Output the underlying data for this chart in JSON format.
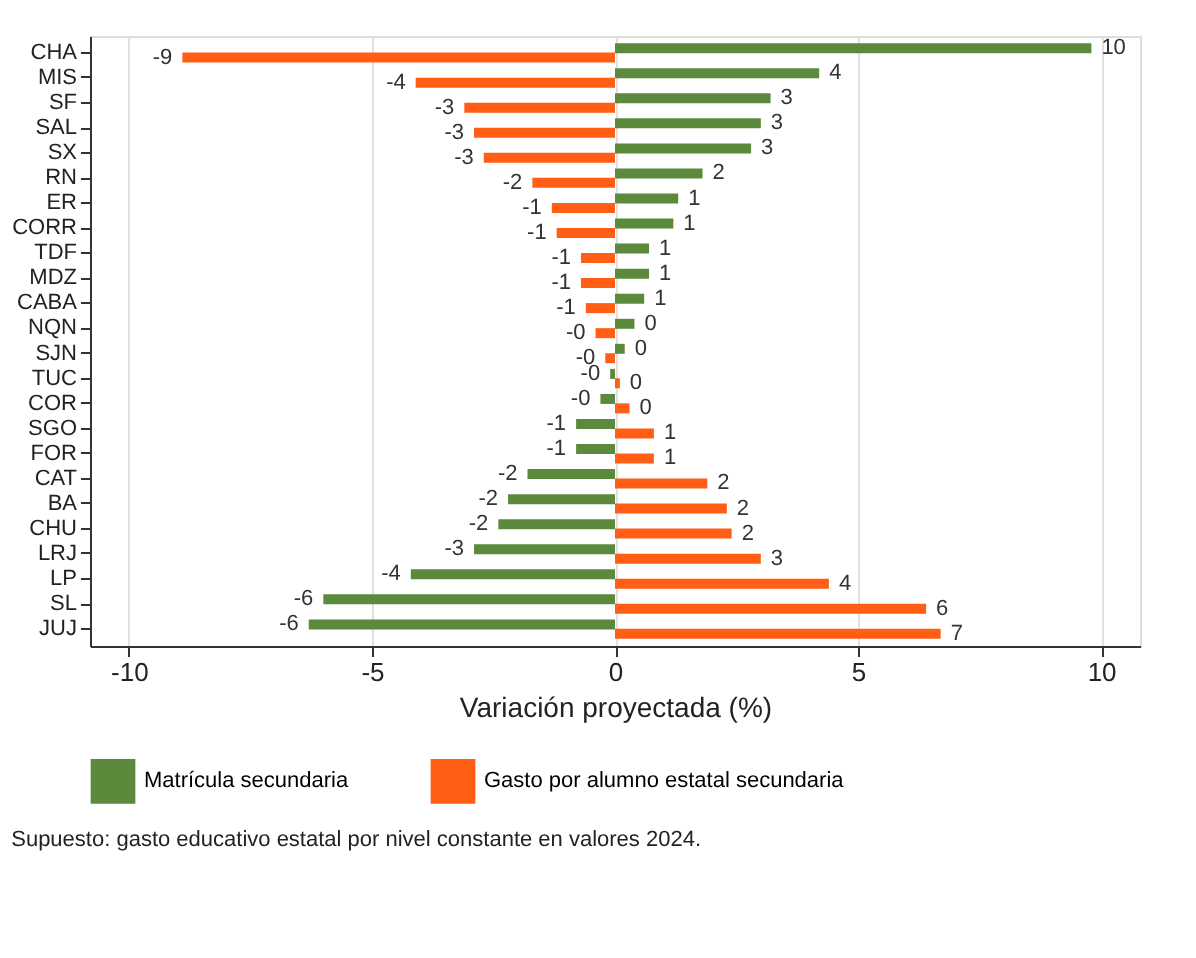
{
  "chart_data": {
    "type": "bar",
    "orientation": "horizontal",
    "xlabel": "Variación proyectada (%)",
    "categories": [
      "CHA",
      "MIS",
      "SF",
      "SAL",
      "SX",
      "RN",
      "ER",
      "CORR",
      "TDF",
      "MDZ",
      "CABA",
      "NQN",
      "SJN",
      "TUC",
      "COR",
      "SGO",
      "FOR",
      "CAT",
      "BA",
      "CHU",
      "LRJ",
      "LP",
      "SL",
      "JUJ"
    ],
    "series": [
      {
        "name": "Matrícula secundaria",
        "color": "#5b8a3c",
        "values": [
          9.8,
          4.2,
          3.2,
          3.0,
          2.8,
          1.8,
          1.3,
          1.2,
          0.7,
          0.7,
          0.6,
          0.4,
          0.2,
          -0.1,
          -0.3,
          -0.8,
          -0.8,
          -1.8,
          -2.2,
          -2.4,
          -2.9,
          -4.2,
          -6.0,
          -6.3
        ],
        "value_labels": [
          "10",
          "4",
          "3",
          "3",
          "3",
          "2",
          "1",
          "1",
          "1",
          "1",
          "1",
          "0",
          "0",
          "-0",
          "-0",
          "-1",
          "-1",
          "-2",
          "-2",
          "-2",
          "-3",
          "-4",
          "-6",
          "-6"
        ]
      },
      {
        "name": "Gasto por alumno estatal secundaria",
        "color": "#ff5e14",
        "values": [
          -8.9,
          -4.1,
          -3.1,
          -2.9,
          -2.7,
          -1.7,
          -1.3,
          -1.2,
          -0.7,
          -0.7,
          -0.6,
          -0.4,
          -0.2,
          0.1,
          0.3,
          0.8,
          0.8,
          1.9,
          2.3,
          2.4,
          3.0,
          4.4,
          6.4,
          6.7
        ],
        "value_labels": [
          "-9",
          "-4",
          "-3",
          "-3",
          "-3",
          "-2",
          "-1",
          "-1",
          "-1",
          "-1",
          "-1",
          "-0",
          "-0",
          "0",
          "0",
          "1",
          "1",
          "2",
          "2",
          "2",
          "3",
          "4",
          "6",
          "7"
        ]
      }
    ],
    "xlim": [
      -10.8,
      10.8
    ],
    "xticks": [
      -10,
      -5,
      0,
      5,
      10
    ],
    "grid": "x",
    "legend": "bottom",
    "annotations": [
      "Supuesto: gasto educativo estatal por nivel constante en valores 2024."
    ]
  }
}
